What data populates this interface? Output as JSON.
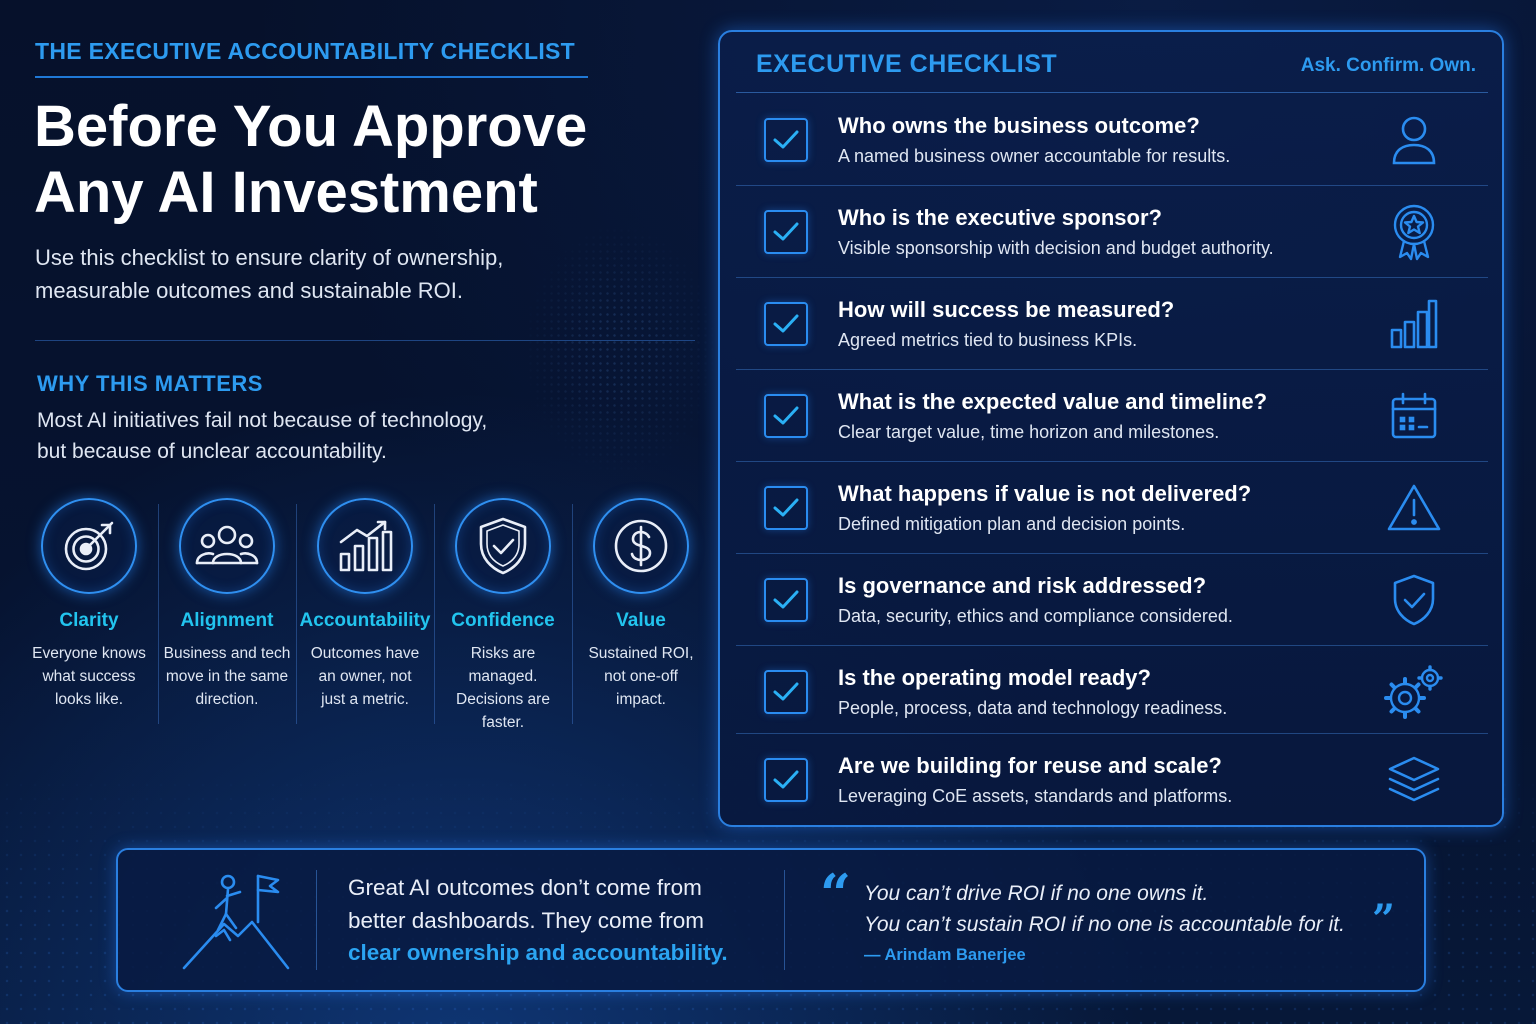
{
  "header": {
    "eyebrow": "THE EXECUTIVE ACCOUNTABILITY CHECKLIST",
    "headline_line1": "Before You Approve",
    "headline_line2": "Any AI Investment",
    "intro_line1": "Use this checklist to ensure clarity of ownership,",
    "intro_line2": "measurable outcomes and sustainable ROI."
  },
  "why": {
    "title": "WHY THIS MATTERS",
    "text_line1": "Most AI initiatives fail not because of technology,",
    "text_line2": "but because of unclear accountability."
  },
  "pillars": [
    {
      "icon": "target-icon",
      "title": "Clarity",
      "d1": "Everyone knows",
      "d2": "what success",
      "d3": "looks like."
    },
    {
      "icon": "team-icon",
      "title": "Alignment",
      "d1": "Business and tech",
      "d2": "move in the same",
      "d3": "direction."
    },
    {
      "icon": "growth-chart-icon",
      "title": "Accountability",
      "d1": "Outcomes have",
      "d2": "an owner, not",
      "d3": "just a metric."
    },
    {
      "icon": "shield-check-icon",
      "title": "Confidence",
      "d1": "Risks are managed.",
      "d2": "Decisions are",
      "d3": "faster."
    },
    {
      "icon": "dollar-icon",
      "title": "Value",
      "d1": "Sustained ROI,",
      "d2": "not one-off",
      "d3": "impact."
    }
  ],
  "checklist": {
    "title": "EXECUTIVE CHECKLIST",
    "tagline": "Ask. Confirm. Own.",
    "items": [
      {
        "question": "Who owns the business outcome?",
        "answer": "A named business owner accountable for results.",
        "icon": "person-icon"
      },
      {
        "question": "Who is the executive sponsor?",
        "answer": "Visible sponsorship with decision and budget authority.",
        "icon": "award-ribbon-icon"
      },
      {
        "question": "How will success be measured?",
        "answer": "Agreed metrics tied to business KPIs.",
        "icon": "bar-chart-icon"
      },
      {
        "question": "What is the expected value and timeline?",
        "answer": "Clear target value, time horizon and milestones.",
        "icon": "calendar-icon"
      },
      {
        "question": "What happens if value is not delivered?",
        "answer": "Defined mitigation plan and decision points.",
        "icon": "warning-icon"
      },
      {
        "question": "Is governance and risk addressed?",
        "answer": "Data, security, ethics and compliance considered.",
        "icon": "shield-check-icon"
      },
      {
        "question": "Is the operating model ready?",
        "answer": "People, process, data and technology readiness.",
        "icon": "gears-icon"
      },
      {
        "question": "Are we building for reuse and scale?",
        "answer": "Leveraging CoE assets, standards and platforms.",
        "icon": "layers-icon"
      }
    ]
  },
  "banner": {
    "icon": "summit-flag-icon",
    "msg_line1": "Great AI outcomes don’t come from",
    "msg_line2a": "better dashboards.",
    "msg_line2b": " They come from",
    "msg_highlight": "clear ownership and accountability.",
    "quote_open": "“",
    "quote_close": "”",
    "quote_line1": "You can’t drive ROI if no one owns it.",
    "quote_line2": "You can’t sustain ROI if no one is accountable for it.",
    "author": "— Arindam Banerjee"
  },
  "colors": {
    "background": "#06112b",
    "accent_blue": "#2d9bf0",
    "accent_cyan": "#22c4ee",
    "border": "#2a7fe0",
    "text": "#e9eef8"
  }
}
